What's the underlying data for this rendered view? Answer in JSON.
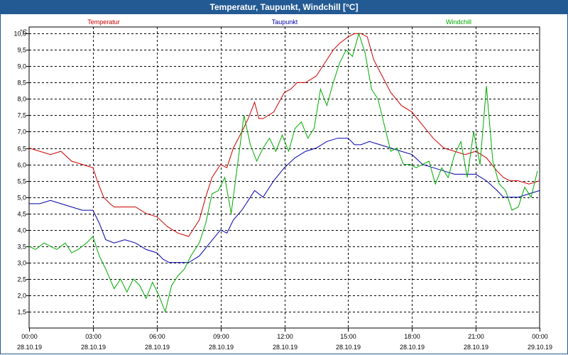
{
  "chart_data": {
    "type": "line",
    "title": "Temperatur, Taupunkt, Windchill [°C]",
    "ylabel": "°C",
    "ylim": [
      1.0,
      10.2
    ],
    "xlim_hours": [
      0,
      24
    ],
    "yticks": [
      "1,5",
      "2,0",
      "2,5",
      "3,0",
      "3,5",
      "4,0",
      "4,5",
      "5,0",
      "5,5",
      "6,0",
      "6,5",
      "7,0",
      "7,5",
      "8,0",
      "8,5",
      "9,0",
      "9,5",
      "10,0"
    ],
    "ytick_values": [
      1.5,
      2.0,
      2.5,
      3.0,
      3.5,
      4.0,
      4.5,
      5.0,
      5.5,
      6.0,
      6.5,
      7.0,
      7.5,
      8.0,
      8.5,
      9.0,
      9.5,
      10.0
    ],
    "xticks": [
      {
        "time": "00:00",
        "date": "28.10.19"
      },
      {
        "time": "03:00",
        "date": "28.10.19"
      },
      {
        "time": "06:00",
        "date": "28.10.19"
      },
      {
        "time": "09:00",
        "date": "28.10.19"
      },
      {
        "time": "12:00",
        "date": "28.10.19"
      },
      {
        "time": "15:00",
        "date": "28.10.19"
      },
      {
        "time": "18:00",
        "date": "28.10.19"
      },
      {
        "time": "21:00",
        "date": "28.10.19"
      },
      {
        "time": "00:00",
        "date": "29.10.19"
      }
    ],
    "series": [
      {
        "name": "Temperatur",
        "color": "#cc0000",
        "hours": [
          0,
          0.5,
          1,
          1.5,
          2,
          2.5,
          3,
          3.2,
          3.5,
          3.8,
          4,
          4.5,
          5,
          5.5,
          6,
          6.5,
          7,
          7.5,
          8,
          8.3,
          8.6,
          9,
          9.3,
          9.6,
          10,
          10.3,
          10.6,
          10.8,
          11,
          11.5,
          12,
          12.3,
          12.6,
          13,
          13.5,
          14,
          14.3,
          14.6,
          15,
          15.3,
          15.6,
          15.9,
          16.2,
          16.6,
          17,
          17.5,
          18,
          18.5,
          19,
          19.5,
          20,
          20.5,
          21,
          21.5,
          22,
          22.3,
          22.6,
          23,
          23.5,
          24
        ],
        "values": [
          6.5,
          6.4,
          6.3,
          6.4,
          6.1,
          6.0,
          5.9,
          5.5,
          5.0,
          4.8,
          4.7,
          4.7,
          4.7,
          4.5,
          4.4,
          4.1,
          3.9,
          3.8,
          4.3,
          5.0,
          5.6,
          6.0,
          5.9,
          6.5,
          7.0,
          7.4,
          7.9,
          7.4,
          7.4,
          7.6,
          8.2,
          8.3,
          8.5,
          8.5,
          8.7,
          9.2,
          9.5,
          9.7,
          9.9,
          10.0,
          10.0,
          9.9,
          9.2,
          8.7,
          8.2,
          7.8,
          7.6,
          7.2,
          6.8,
          6.5,
          6.4,
          6.3,
          6.4,
          6.2,
          5.8,
          5.6,
          5.5,
          5.5,
          5.4,
          5.5
        ]
      },
      {
        "name": "Taupunkt",
        "color": "#0000aa",
        "hours": [
          0,
          0.5,
          1,
          1.5,
          2,
          2.5,
          3,
          3.3,
          3.6,
          4,
          4.5,
          5,
          5.5,
          6,
          6.3,
          6.6,
          7,
          7.5,
          8,
          8.5,
          9,
          9.3,
          9.6,
          10,
          10.3,
          10.6,
          11,
          11.5,
          12,
          12.5,
          13,
          13.5,
          14,
          14.5,
          15,
          15.3,
          15.6,
          16,
          16.5,
          17,
          17.5,
          18,
          18.5,
          19,
          19.5,
          20,
          20.5,
          21,
          21.5,
          22,
          22.3,
          22.6,
          23,
          23.5,
          24
        ],
        "values": [
          4.8,
          4.8,
          4.9,
          4.8,
          4.7,
          4.6,
          4.6,
          4.2,
          3.7,
          3.6,
          3.7,
          3.6,
          3.4,
          3.3,
          3.1,
          3.0,
          3.0,
          3.0,
          3.2,
          3.6,
          4.0,
          3.9,
          4.3,
          4.6,
          4.9,
          5.2,
          5.0,
          5.5,
          5.9,
          6.2,
          6.4,
          6.5,
          6.7,
          6.8,
          6.8,
          6.6,
          6.6,
          6.7,
          6.6,
          6.5,
          6.4,
          6.3,
          6.0,
          5.9,
          5.8,
          5.7,
          5.7,
          5.7,
          5.5,
          5.2,
          5.0,
          5.0,
          5.0,
          5.1,
          5.2
        ]
      },
      {
        "name": "Windchill",
        "color": "#00aa00",
        "hours": [
          0,
          0.3,
          0.7,
          1,
          1.3,
          1.7,
          2,
          2.3,
          2.7,
          3,
          3.3,
          3.6,
          4,
          4.3,
          4.6,
          4.9,
          5.2,
          5.5,
          5.8,
          6.1,
          6.4,
          6.7,
          7,
          7.3,
          7.6,
          8,
          8.3,
          8.6,
          8.9,
          9.2,
          9.5,
          9.8,
          10.1,
          10.4,
          10.7,
          11,
          11.3,
          11.6,
          11.9,
          12.2,
          12.5,
          12.8,
          13.1,
          13.4,
          13.7,
          14,
          14.3,
          14.6,
          14.9,
          15.2,
          15.5,
          15.8,
          16.1,
          16.4,
          16.7,
          17,
          17.3,
          17.6,
          17.9,
          18.2,
          18.5,
          18.8,
          19.1,
          19.4,
          19.7,
          20,
          20.3,
          20.6,
          20.9,
          21.2,
          21.5,
          21.8,
          22.1,
          22.4,
          22.7,
          23,
          23.3,
          23.6,
          23.9
        ],
        "values": [
          3.5,
          3.4,
          3.6,
          3.5,
          3.4,
          3.6,
          3.3,
          3.4,
          3.6,
          3.8,
          3.2,
          2.8,
          2.2,
          2.5,
          2.1,
          2.5,
          2.3,
          1.9,
          2.4,
          2.0,
          1.5,
          2.3,
          2.6,
          2.8,
          3.2,
          3.6,
          4.2,
          5.1,
          5.2,
          5.6,
          4.5,
          6.0,
          7.5,
          6.6,
          6.1,
          6.5,
          6.8,
          6.4,
          6.9,
          6.4,
          7.1,
          7.3,
          6.8,
          7.1,
          8.3,
          7.8,
          8.5,
          9.1,
          9.5,
          9.3,
          10.0,
          9.4,
          8.3,
          8.0,
          7.2,
          6.4,
          6.5,
          6.0,
          6.0,
          5.9,
          6.0,
          6.1,
          5.4,
          5.9,
          5.6,
          6.3,
          6.7,
          5.6,
          7.0,
          6.0,
          8.4,
          6.1,
          5.4,
          5.2,
          4.6,
          4.7,
          5.3,
          5.0,
          5.8
        ]
      }
    ]
  }
}
